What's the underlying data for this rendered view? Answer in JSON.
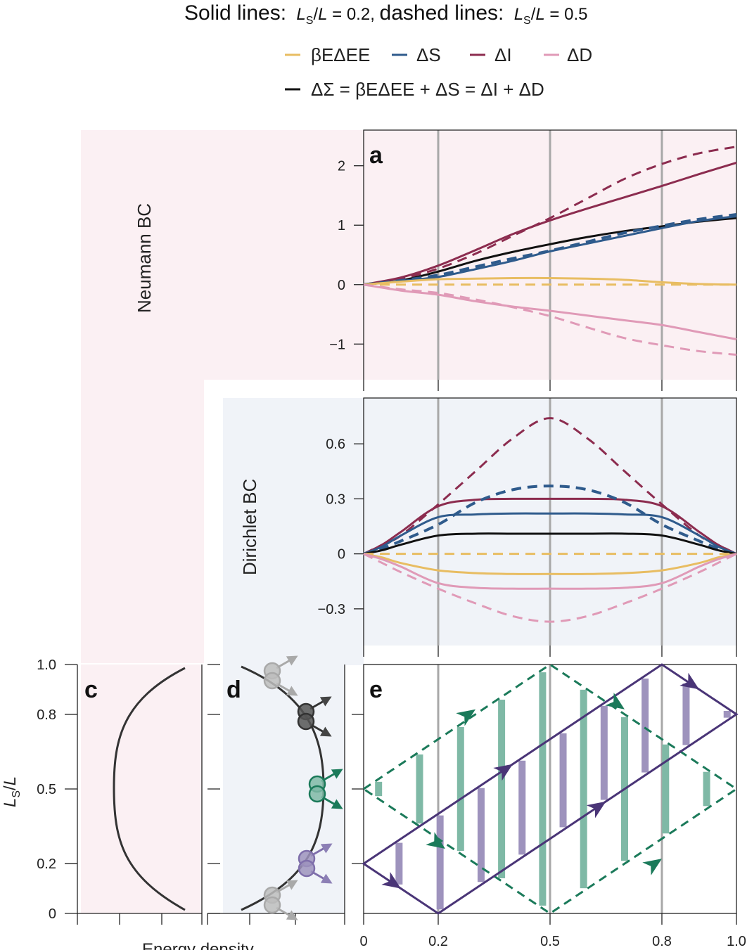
{
  "header": {
    "title_solid": "Solid lines:",
    "title_solid_val": "L_S/L = 0.2,",
    "title_dashed": "dashed lines:",
    "title_dashed_val": "L_S/L = 0.5"
  },
  "legend": [
    {
      "key": "beta",
      "label": "βEΔEE",
      "color": "#e8bd62"
    },
    {
      "key": "dS",
      "label": "ΔS",
      "color": "#2f5b8c"
    },
    {
      "key": "dI",
      "label": "ΔI",
      "color": "#8c2c4f"
    },
    {
      "key": "dD",
      "label": "ΔD",
      "color": "#e09ab7"
    },
    {
      "key": "dSigma",
      "label": "ΔΣ = βEΔEE + ΔS = ΔI + ΔD",
      "color": "#111111"
    }
  ],
  "labels": {
    "neumann": "Neumann BC",
    "dirichlet": "Dirichlet BC",
    "energy_density": "Energy density",
    "ls_over_l": "LS/L"
  },
  "colors": {
    "neumann_bg": "#fbf0f3",
    "dirichlet_bg": "#f0f3f8",
    "grid": "#a8a8a8",
    "green": "#1b7a5a",
    "green_fill": "#7fb9a6",
    "purple": "#4a3577",
    "purple_fill": "#9e93bd",
    "gray_particle": "#bdbdbd",
    "dark_particle": "#444444"
  },
  "chart_data": [
    {
      "panel": "a",
      "type": "line",
      "title": "Neumann BC",
      "xlim": [
        0,
        1
      ],
      "ylim": [
        -1.6,
        2.6
      ],
      "yticks": [
        2,
        1,
        0,
        -1
      ],
      "ytick_labels": [
        "2",
        "1",
        "0",
        "−1"
      ],
      "vlines": [
        0.2,
        0.5,
        0.8
      ],
      "x": [
        0,
        0.1,
        0.2,
        0.3,
        0.4,
        0.5,
        0.6,
        0.7,
        0.8,
        0.9,
        1.0
      ],
      "series": [
        {
          "name": "ΔI (solid)",
          "key": "dI",
          "dash": false,
          "values": [
            0,
            0.12,
            0.32,
            0.58,
            0.85,
            1.08,
            1.28,
            1.47,
            1.66,
            1.86,
            2.05
          ]
        },
        {
          "name": "ΔI (dashed)",
          "key": "dI",
          "dash": true,
          "values": [
            0,
            0.1,
            0.27,
            0.52,
            0.82,
            1.12,
            1.45,
            1.78,
            2.03,
            2.21,
            2.32
          ]
        },
        {
          "name": "ΔΣ (solid)",
          "key": "dSigma",
          "dash": false,
          "values": [
            0,
            0.07,
            0.22,
            0.4,
            0.55,
            0.68,
            0.8,
            0.9,
            0.98,
            1.06,
            1.12
          ]
        },
        {
          "name": "ΔS (solid)",
          "key": "dS",
          "dash": false,
          "values": [
            0,
            0.06,
            0.13,
            0.26,
            0.4,
            0.56,
            0.69,
            0.82,
            0.95,
            1.07,
            1.15
          ]
        },
        {
          "name": "ΔS (dashed)",
          "key": "dS",
          "dash": true,
          "values": [
            0,
            0.07,
            0.16,
            0.3,
            0.44,
            0.57,
            0.72,
            0.87,
            0.99,
            1.1,
            1.18
          ]
        },
        {
          "name": "βEΔEE (solid)",
          "key": "beta",
          "dash": false,
          "values": [
            0,
            0.05,
            0.09,
            0.1,
            0.11,
            0.11,
            0.1,
            0.08,
            0.04,
            0.01,
            0.0
          ]
        },
        {
          "name": "βEΔEE (dashed)",
          "key": "beta",
          "dash": true,
          "values": [
            0,
            0.0,
            0.0,
            0.0,
            0.0,
            0.0,
            0.0,
            0.0,
            0.0,
            0.0,
            0.0
          ]
        },
        {
          "name": "ΔD (solid)",
          "key": "dD",
          "dash": false,
          "values": [
            0,
            -0.1,
            -0.17,
            -0.28,
            -0.37,
            -0.44,
            -0.52,
            -0.6,
            -0.68,
            -0.8,
            -0.92
          ]
        },
        {
          "name": "ΔD (dashed)",
          "key": "dD",
          "dash": true,
          "values": [
            0,
            -0.08,
            -0.14,
            -0.25,
            -0.38,
            -0.53,
            -0.72,
            -0.9,
            -1.02,
            -1.12,
            -1.18
          ]
        }
      ]
    },
    {
      "panel": "b",
      "type": "line",
      "title": "Dirichlet BC",
      "xlim": [
        0,
        1
      ],
      "ylim": [
        -0.5,
        0.85
      ],
      "yticks": [
        0.6,
        0.3,
        0,
        -0.3
      ],
      "ytick_labels": [
        "0.6",
        "0.3",
        "0",
        "−0.3"
      ],
      "vlines": [
        0.2,
        0.5,
        0.8
      ],
      "x": [
        0,
        0.05,
        0.1,
        0.2,
        0.3,
        0.4,
        0.5,
        0.6,
        0.7,
        0.8,
        0.9,
        0.95,
        1.0
      ],
      "series": [
        {
          "name": "ΔI (dashed)",
          "key": "dI",
          "dash": true,
          "values": [
            0,
            0.05,
            0.1,
            0.27,
            0.45,
            0.63,
            0.74,
            0.63,
            0.45,
            0.27,
            0.1,
            0.05,
            0
          ]
        },
        {
          "name": "ΔI (solid)",
          "key": "dI",
          "dash": false,
          "values": [
            0,
            0.05,
            0.12,
            0.26,
            0.295,
            0.3,
            0.3,
            0.3,
            0.295,
            0.26,
            0.12,
            0.05,
            0
          ]
        },
        {
          "name": "ΔS (dashed)",
          "key": "dS",
          "dash": true,
          "values": [
            0,
            0.03,
            0.07,
            0.16,
            0.28,
            0.35,
            0.37,
            0.35,
            0.28,
            0.16,
            0.07,
            0.03,
            0
          ]
        },
        {
          "name": "ΔS (solid)",
          "key": "dS",
          "dash": false,
          "values": [
            0,
            0.04,
            0.1,
            0.2,
            0.215,
            0.22,
            0.22,
            0.22,
            0.215,
            0.2,
            0.1,
            0.04,
            0
          ]
        },
        {
          "name": "ΔΣ (solid)",
          "key": "dSigma",
          "dash": false,
          "values": [
            0,
            0.02,
            0.05,
            0.1,
            0.11,
            0.11,
            0.11,
            0.11,
            0.11,
            0.1,
            0.05,
            0.02,
            0
          ]
        },
        {
          "name": "βEΔEE (dashed)",
          "key": "beta",
          "dash": true,
          "values": [
            0,
            0,
            0,
            0,
            0,
            0,
            0,
            0,
            0,
            0,
            0,
            0,
            0
          ]
        },
        {
          "name": "βEΔEE (solid)",
          "key": "beta",
          "dash": false,
          "values": [
            0,
            -0.02,
            -0.05,
            -0.09,
            -0.105,
            -0.11,
            -0.11,
            -0.11,
            -0.105,
            -0.09,
            -0.05,
            -0.02,
            0
          ]
        },
        {
          "name": "ΔD (solid)",
          "key": "dD",
          "dash": false,
          "values": [
            0,
            -0.03,
            -0.07,
            -0.16,
            -0.185,
            -0.19,
            -0.19,
            -0.19,
            -0.185,
            -0.16,
            -0.07,
            -0.03,
            0
          ]
        },
        {
          "name": "ΔD (dashed)",
          "key": "dD",
          "dash": true,
          "values": [
            0,
            -0.05,
            -0.1,
            -0.19,
            -0.27,
            -0.34,
            -0.37,
            -0.34,
            -0.27,
            -0.19,
            -0.1,
            -0.05,
            0
          ]
        }
      ]
    },
    {
      "panel": "c",
      "type": "line",
      "xlabel": "Energy density",
      "ylabel": "LS/L",
      "ylim": [
        0,
        1
      ],
      "yticks": [
        0,
        0.2,
        0.5,
        0.8,
        1.0
      ],
      "ytick_labels": [
        "0",
        "0.2",
        "0.5",
        "0.8",
        "1.0"
      ],
      "note": "Neumann energy density profile: minimum at LS/L = 0.5, increasing toward both boundaries"
    },
    {
      "panel": "d",
      "type": "line",
      "xlabel": "Energy density",
      "note": "Dirichlet energy density profile: maximum at LS/L = 0.5, decreasing toward both boundaries; particle pairs at 0.05, 0.2, 0.5, 0.8, 0.95"
    },
    {
      "panel": "e",
      "type": "line",
      "xlim": [
        0,
        1
      ],
      "ylim": [
        0,
        1
      ],
      "xticks": [
        0,
        0.2,
        0.5,
        0.8,
        1.0
      ],
      "xtick_labels": [
        "0",
        "0.2",
        "0.5",
        "0.8",
        "1.0"
      ],
      "vlines": [
        0.2,
        0.5,
        0.8
      ],
      "purple_path": [
        [
          0,
          0.2
        ],
        [
          0.8,
          1.0
        ],
        [
          1.0,
          0.8
        ],
        [
          0.2,
          0.0
        ],
        [
          0,
          0.2
        ]
      ],
      "green_path": [
        [
          0,
          0.5
        ],
        [
          0.5,
          1.0
        ],
        [
          1.0,
          0.5
        ],
        [
          0.5,
          0.0
        ],
        [
          0,
          0.5
        ]
      ]
    }
  ],
  "panel_letters": {
    "a": "a",
    "c": "c",
    "d": "d",
    "e": "e"
  }
}
